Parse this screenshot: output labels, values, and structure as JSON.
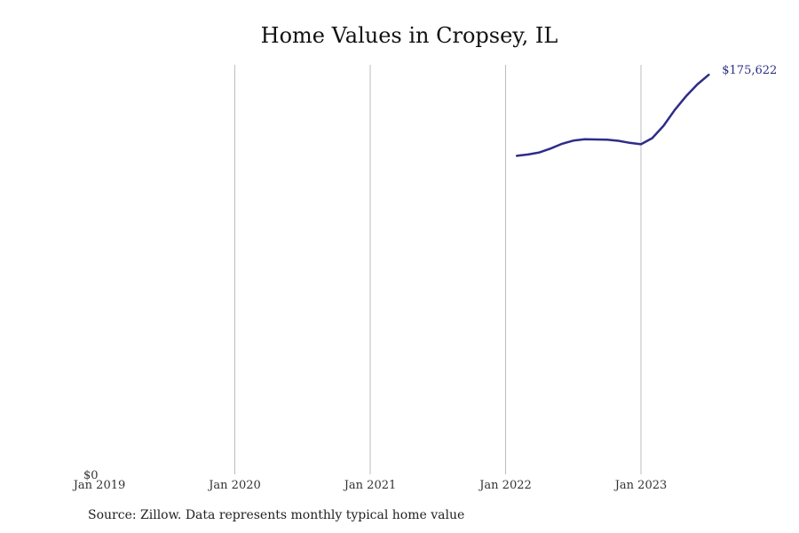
{
  "chart_data": {
    "type": "line",
    "title": "Home Values in Cropsey, IL",
    "xlabel": "",
    "ylabel": "",
    "x_ticks": [
      "Jan 2019",
      "Jan 2020",
      "Jan 2021",
      "Jan 2022",
      "Jan 2023"
    ],
    "y_ticks": [
      "$0"
    ],
    "ylim": [
      0,
      180000
    ],
    "grid": "vertical",
    "end_label": "$175,622",
    "series": [
      {
        "color": "#2e2d88",
        "points": [
          {
            "x": "2022-02",
            "y": 140000
          },
          {
            "x": "2022-03",
            "y": 140600
          },
          {
            "x": "2022-04",
            "y": 141500
          },
          {
            "x": "2022-05",
            "y": 143200
          },
          {
            "x": "2022-06",
            "y": 145300
          },
          {
            "x": "2022-07",
            "y": 146700
          },
          {
            "x": "2022-08",
            "y": 147300
          },
          {
            "x": "2022-09",
            "y": 147200
          },
          {
            "x": "2022-10",
            "y": 147100
          },
          {
            "x": "2022-11",
            "y": 146600
          },
          {
            "x": "2022-12",
            "y": 145700
          },
          {
            "x": "2023-01",
            "y": 145100
          },
          {
            "x": "2023-02",
            "y": 147800
          },
          {
            "x": "2023-03",
            "y": 153200
          },
          {
            "x": "2023-04",
            "y": 160200
          },
          {
            "x": "2023-05",
            "y": 166200
          },
          {
            "x": "2023-06",
            "y": 171400
          },
          {
            "x": "2023-07",
            "y": 175622
          }
        ]
      }
    ]
  },
  "footer": {
    "source": "Source: Zillow. Data represents monthly typical home value"
  }
}
